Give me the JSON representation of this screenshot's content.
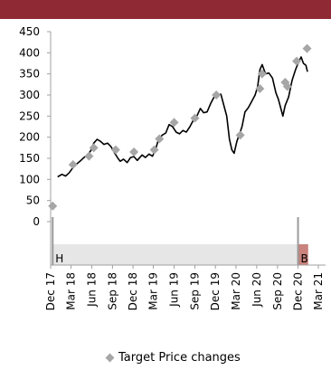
{
  "colors": {
    "header_bar": "#8f2a34",
    "price_line": "#000000",
    "marker": "#a6a6a6",
    "hold_band": "#e6e6e6",
    "buy_band": "#c9827c",
    "axis": "#a0a0a0"
  },
  "legend": {
    "label": "Target Price changes",
    "marker_icon": "diamond-icon"
  },
  "chart_data": {
    "type": "line",
    "yticks": [
      0,
      50,
      100,
      150,
      200,
      250,
      300,
      350,
      400,
      450
    ],
    "ylim": [
      0,
      450
    ],
    "xlim": [
      "2017-12",
      "2021-03"
    ],
    "xticks": [
      {
        "label": "Dec 17",
        "date": "2017-12"
      },
      {
        "label": "Mar 18",
        "date": "2018-03"
      },
      {
        "label": "Jun 18",
        "date": "2018-06"
      },
      {
        "label": "Sep 18",
        "date": "2018-09"
      },
      {
        "label": "Dec 18",
        "date": "2018-12"
      },
      {
        "label": "Mar 19",
        "date": "2019-03"
      },
      {
        "label": "Jun 19",
        "date": "2019-06"
      },
      {
        "label": "Sep 19",
        "date": "2019-09"
      },
      {
        "label": "Dec 19",
        "date": "2019-12"
      },
      {
        "label": "Mar 20",
        "date": "2020-03"
      },
      {
        "label": "Jun 20",
        "date": "2020-06"
      },
      {
        "label": "Sep 20",
        "date": "2020-09"
      },
      {
        "label": "Dec 20",
        "date": "2020-12"
      },
      {
        "label": "Mar 21",
        "date": "2021-03"
      }
    ],
    "series": [
      {
        "kind": "price",
        "points": [
          [
            "2018-01-01",
            106
          ],
          [
            "2018-01-20",
            112
          ],
          [
            "2018-02-05",
            108
          ],
          [
            "2018-02-20",
            115
          ],
          [
            "2018-03-10",
            128
          ],
          [
            "2018-03-25",
            136
          ],
          [
            "2018-04-10",
            143
          ],
          [
            "2018-04-28",
            152
          ],
          [
            "2018-05-12",
            158
          ],
          [
            "2018-05-28",
            168
          ],
          [
            "2018-06-10",
            186
          ],
          [
            "2018-06-25",
            195
          ],
          [
            "2018-07-10",
            190
          ],
          [
            "2018-07-25",
            183
          ],
          [
            "2018-08-10",
            186
          ],
          [
            "2018-08-25",
            178
          ],
          [
            "2018-09-10",
            163
          ],
          [
            "2018-09-25",
            150
          ],
          [
            "2018-10-05",
            143
          ],
          [
            "2018-10-20",
            148
          ],
          [
            "2018-11-05",
            140
          ],
          [
            "2018-11-20",
            152
          ],
          [
            "2018-12-05",
            154
          ],
          [
            "2018-12-20",
            145
          ],
          [
            "2019-01-10",
            158
          ],
          [
            "2019-01-25",
            152
          ],
          [
            "2019-02-10",
            160
          ],
          [
            "2019-02-25",
            155
          ],
          [
            "2019-03-10",
            170
          ],
          [
            "2019-03-25",
            196
          ],
          [
            "2019-04-10",
            205
          ],
          [
            "2019-04-25",
            210
          ],
          [
            "2019-05-10",
            230
          ],
          [
            "2019-05-25",
            225
          ],
          [
            "2019-06-10",
            212
          ],
          [
            "2019-06-25",
            208
          ],
          [
            "2019-07-10",
            216
          ],
          [
            "2019-07-25",
            212
          ],
          [
            "2019-08-10",
            225
          ],
          [
            "2019-08-25",
            240
          ],
          [
            "2019-09-10",
            250
          ],
          [
            "2019-09-25",
            268
          ],
          [
            "2019-10-10",
            258
          ],
          [
            "2019-10-25",
            260
          ],
          [
            "2019-11-10",
            280
          ],
          [
            "2019-11-25",
            295
          ],
          [
            "2019-12-10",
            298
          ],
          [
            "2019-12-25",
            302
          ],
          [
            "2020-01-10",
            270
          ],
          [
            "2020-01-20",
            250
          ],
          [
            "2020-02-01",
            195
          ],
          [
            "2020-02-12",
            170
          ],
          [
            "2020-02-22",
            162
          ],
          [
            "2020-03-05",
            190
          ],
          [
            "2020-03-15",
            205
          ],
          [
            "2020-03-28",
            225
          ],
          [
            "2020-04-10",
            260
          ],
          [
            "2020-04-25",
            270
          ],
          [
            "2020-05-10",
            285
          ],
          [
            "2020-05-25",
            300
          ],
          [
            "2020-06-05",
            320
          ],
          [
            "2020-06-15",
            360
          ],
          [
            "2020-06-25",
            372
          ],
          [
            "2020-07-10",
            350
          ],
          [
            "2020-07-25",
            352
          ],
          [
            "2020-08-10",
            340
          ],
          [
            "2020-08-25",
            305
          ],
          [
            "2020-09-05",
            290
          ],
          [
            "2020-09-15",
            270
          ],
          [
            "2020-09-25",
            250
          ],
          [
            "2020-10-05",
            275
          ],
          [
            "2020-10-20",
            295
          ],
          [
            "2020-11-05",
            335
          ],
          [
            "2020-11-20",
            360
          ],
          [
            "2020-12-05",
            380
          ],
          [
            "2020-12-15",
            390
          ],
          [
            "2020-12-25",
            375
          ],
          [
            "2021-01-05",
            370
          ],
          [
            "2021-01-12",
            355
          ]
        ]
      },
      {
        "kind": "target_markers",
        "points": [
          [
            "2017-12-10",
            37
          ],
          [
            "2018-03-10",
            135
          ],
          [
            "2018-05-20",
            155
          ],
          [
            "2018-06-10",
            175
          ],
          [
            "2018-09-15",
            170
          ],
          [
            "2018-12-05",
            165
          ],
          [
            "2019-03-05",
            170
          ],
          [
            "2019-03-28",
            196
          ],
          [
            "2019-06-01",
            235
          ],
          [
            "2019-09-01",
            245
          ],
          [
            "2019-12-05",
            300
          ],
          [
            "2020-03-20",
            205
          ],
          [
            "2020-06-15",
            315
          ],
          [
            "2020-06-25",
            350
          ],
          [
            "2020-10-05",
            330
          ],
          [
            "2020-10-15",
            320
          ],
          [
            "2020-11-25",
            380
          ],
          [
            "2021-01-10",
            410
          ]
        ]
      }
    ],
    "rating_band": [
      {
        "label": "H",
        "start": "2017-12-10",
        "end": "2020-12-01",
        "color": "#e6e6e6"
      },
      {
        "label": "B",
        "start": "2020-12-01",
        "end": "2021-01-15",
        "color": "#c9827c"
      }
    ],
    "legend_entries": [
      "Target Price changes"
    ]
  }
}
